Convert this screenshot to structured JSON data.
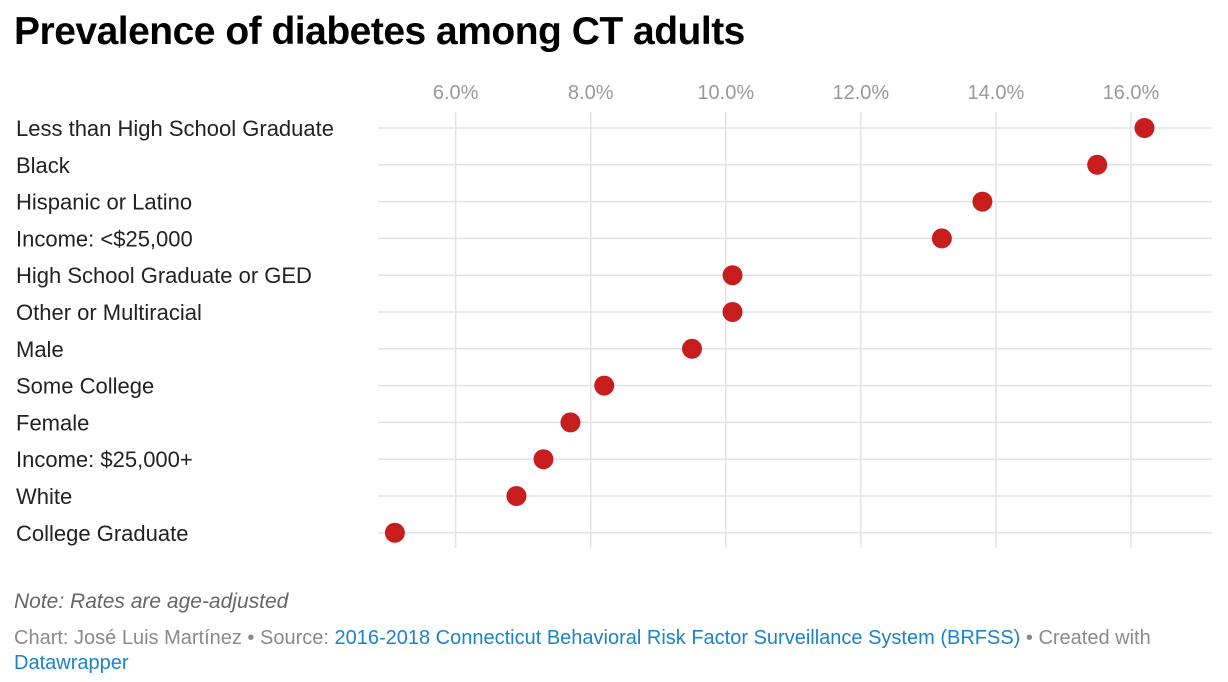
{
  "chart_data": {
    "type": "scatter",
    "title": "Prevalence of diabetes among CT adults",
    "categories": [
      "Less than High School Graduate",
      "Black",
      "Hispanic or Latino",
      "Income: <$25,000",
      "High School Graduate or GED",
      "Other or Multiracial",
      "Male",
      "Some College",
      "Female",
      "Income: $25,000+",
      "White",
      "College Graduate"
    ],
    "values": [
      16.2,
      15.5,
      13.8,
      13.2,
      10.1,
      10.1,
      9.5,
      8.2,
      7.7,
      7.3,
      6.9,
      5.1
    ],
    "xticks": [
      6,
      8,
      10,
      12,
      14,
      16
    ],
    "xtick_labels": [
      "6.0%",
      "8.0%",
      "10.0%",
      "12.0%",
      "14.0%",
      "16.0%"
    ],
    "xlim": [
      4.85,
      17.2
    ],
    "grid": true,
    "dot_color": "#c71e1d"
  },
  "footer": {
    "note": "Note: Rates are age-adjusted",
    "chart_prefix": "Chart: José Luis Martínez • Source: ",
    "source_link": "2016-2018 Connecticut Behavioral Risk Factor Surveillance System (BRFSS)",
    "created": " • Created with ",
    "dw_link": "Datawrapper"
  }
}
